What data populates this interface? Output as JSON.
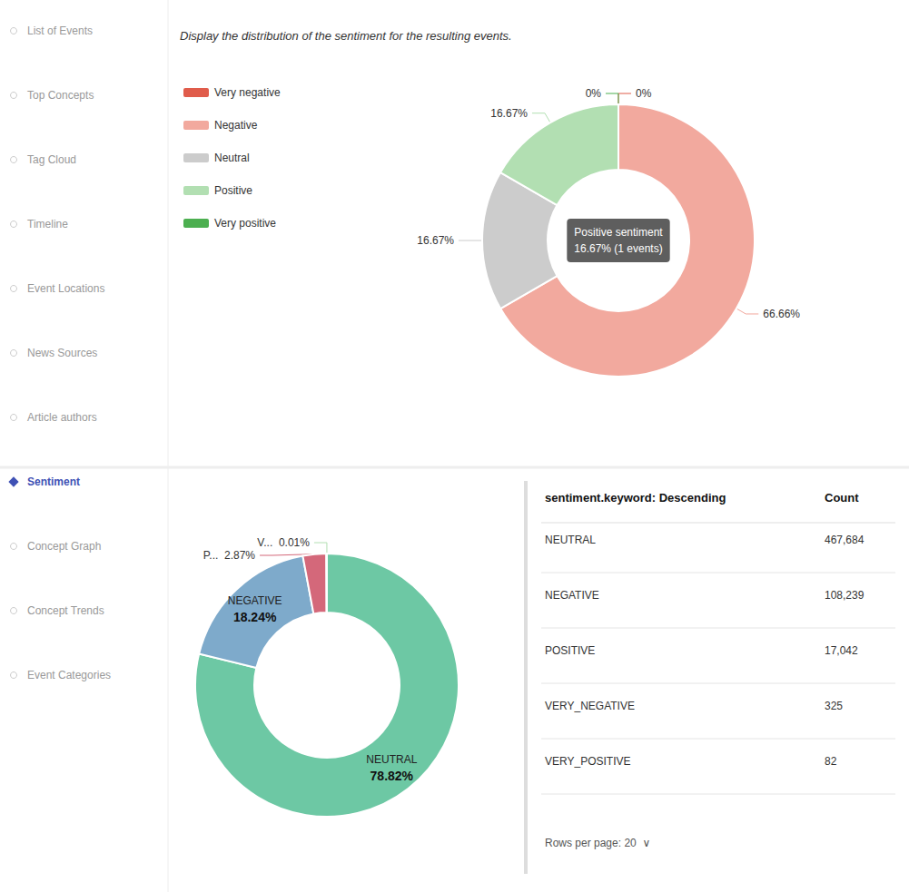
{
  "chart_data": [
    {
      "type": "menu",
      "categories": [
        "List of Events",
        "Top Concepts",
        "Tag Cloud",
        "Timeline",
        "Event Locations",
        "News Sources",
        "Article authors",
        "Sentiment",
        "Concept Graph",
        "Concept Trends",
        "Event Categories"
      ],
      "active": "Sentiment"
    },
    {
      "type": "pie",
      "title": "Display the distribution of the sentiment for the resulting events.",
      "categories": [
        "Very negative",
        "Negative",
        "Neutral",
        "Positive",
        "Very positive"
      ],
      "values": [
        0.001,
        66.66,
        16.67,
        16.67,
        0.001
      ],
      "value_labels": [
        "0%",
        "66.66%",
        "16.67%",
        "16.67%",
        "0%"
      ],
      "colors": [
        "#e05c4b",
        "#f2a99e",
        "#cccccc",
        "#b2dfb2",
        "#4caf50"
      ],
      "data_labels": true,
      "legend": "left",
      "annotations": [
        "Positive sentiment\n16.67% (1 events)"
      ]
    },
    {
      "type": "pie",
      "categories": [
        "NEUTRAL",
        "NEGATIVE",
        "P...",
        null,
        "V..."
      ],
      "values": [
        78.82,
        18.24,
        2.87,
        0.06,
        0.01
      ],
      "value_labels": [
        "78.82%",
        "18.24%",
        "2.87%",
        null,
        "0.01%"
      ],
      "colors": [
        "#6dc8a4",
        "#7eaacb",
        "#d4687a",
        "#e05c4b",
        "#b2dfb2"
      ],
      "data_labels": true
    },
    {
      "type": "table",
      "columns": [
        "sentiment.keyword: Descending",
        "Count"
      ],
      "rows": [
        [
          "NEUTRAL",
          "467,684"
        ],
        [
          "NEGATIVE",
          "108,239"
        ],
        [
          "POSITIVE",
          "17,042"
        ],
        [
          "VERY_NEGATIVE",
          "325"
        ],
        [
          "VERY_POSITIVE",
          "82"
        ]
      ],
      "footer": "Rows per page: 20  ∨"
    }
  ]
}
